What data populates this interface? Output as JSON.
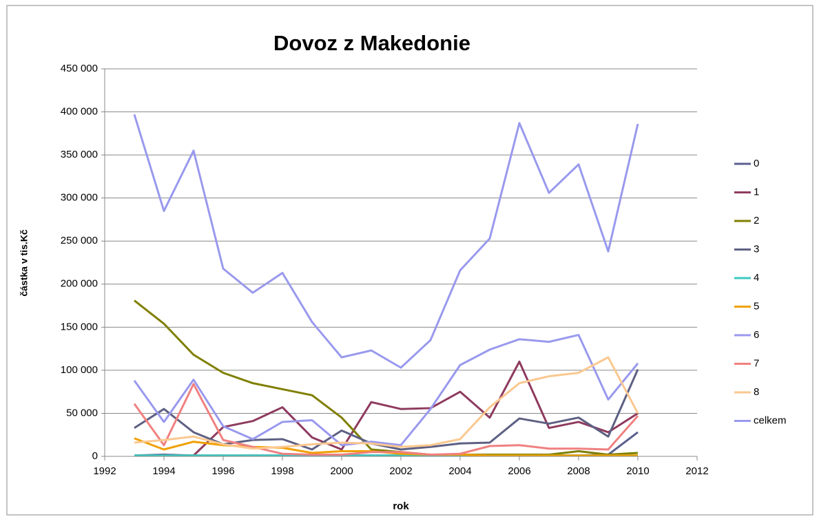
{
  "chart_data": {
    "type": "line",
    "title": "Dovoz z Makedonie",
    "xlabel": "rok",
    "ylabel": "částka v tis.Kč",
    "x": [
      1993,
      1994,
      1995,
      1996,
      1997,
      1998,
      1999,
      2000,
      2001,
      2002,
      2003,
      2004,
      2005,
      2006,
      2007,
      2008,
      2009,
      2010
    ],
    "xlim": [
      1992,
      2012
    ],
    "xticks": [
      1992,
      1994,
      1996,
      1998,
      2000,
      2002,
      2004,
      2006,
      2008,
      2010,
      2012
    ],
    "ylim": [
      0,
      450000
    ],
    "yticks": [
      0,
      {
        "value": 50000,
        "label": "50 000"
      },
      {
        "value": 100000,
        "label": "100 000"
      },
      {
        "value": 150000,
        "label": "150 000"
      },
      {
        "value": 200000,
        "label": "200 000"
      },
      {
        "value": 250000,
        "label": "250 000"
      },
      {
        "value": 300000,
        "label": "300 000"
      },
      {
        "value": 350000,
        "label": "350 000"
      },
      {
        "value": 400000,
        "label": "400 000"
      },
      {
        "value": 450000,
        "label": "450 000"
      }
    ],
    "grid": true,
    "legend": "right",
    "series": [
      {
        "name": "0",
        "color": "#5a5f8e",
        "values": [
          1000,
          2000,
          1000,
          1000,
          1000,
          1000,
          1000,
          1000,
          1000,
          1000,
          1000,
          1000,
          1000,
          1000,
          1000,
          1000,
          2000,
          28000
        ]
      },
      {
        "name": "1",
        "color": "#8e3a5e",
        "values": [
          null,
          null,
          1000,
          34000,
          41000,
          57000,
          22000,
          8000,
          63000,
          55000,
          56000,
          75000,
          45000,
          110000,
          33000,
          40000,
          28000,
          50000
        ]
      },
      {
        "name": "2",
        "color": "#7f7f00",
        "values": [
          181000,
          154000,
          118000,
          97000,
          85000,
          78000,
          71000,
          45000,
          8000,
          5000,
          2000,
          2000,
          2000,
          2000,
          2000,
          6000,
          2000,
          4000
        ]
      },
      {
        "name": "3",
        "color": "#5d6082",
        "values": [
          33000,
          55000,
          28000,
          14000,
          19000,
          20000,
          8000,
          30000,
          15000,
          8000,
          11000,
          15000,
          16000,
          44000,
          38000,
          45000,
          23000,
          101000
        ]
      },
      {
        "name": "4",
        "color": "#3cc8c0",
        "values": [
          1000,
          1000,
          1000,
          1000,
          1000,
          1000,
          1000,
          1000,
          1000,
          1000,
          1000,
          1000,
          1000,
          1000,
          1000,
          1000,
          1000,
          1000
        ]
      },
      {
        "name": "5",
        "color": "#f0a000",
        "values": [
          21000,
          8000,
          17000,
          13000,
          11000,
          10000,
          4000,
          6000,
          6000,
          3000,
          2000,
          2000,
          1000,
          1000,
          1000,
          1000,
          1000,
          1000
        ]
      },
      {
        "name": "6",
        "color": "#9999ee",
        "values": [
          88000,
          40000,
          89000,
          35000,
          20000,
          40000,
          42000,
          13000,
          17000,
          13000,
          55000,
          106000,
          124000,
          136000,
          133000,
          141000,
          66000,
          108000
        ]
      },
      {
        "name": "7",
        "color": "#f08080",
        "values": [
          61000,
          13000,
          84000,
          19000,
          11000,
          3000,
          2000,
          2000,
          5000,
          5000,
          2000,
          3000,
          12000,
          13000,
          9000,
          9000,
          8000,
          47000
        ]
      },
      {
        "name": "8",
        "color": "#fac890",
        "values": [
          16000,
          19000,
          23000,
          14000,
          9000,
          11000,
          14000,
          16000,
          15000,
          11000,
          13000,
          20000,
          57000,
          85000,
          93000,
          97000,
          115000,
          50000
        ]
      },
      {
        "name": "celkem",
        "color": "#9999ee",
        "values": [
          397000,
          285000,
          355000,
          218000,
          190000,
          213000,
          156000,
          115000,
          123000,
          103000,
          135000,
          216000,
          253000,
          387000,
          306000,
          339000,
          238000,
          386000
        ]
      }
    ]
  }
}
